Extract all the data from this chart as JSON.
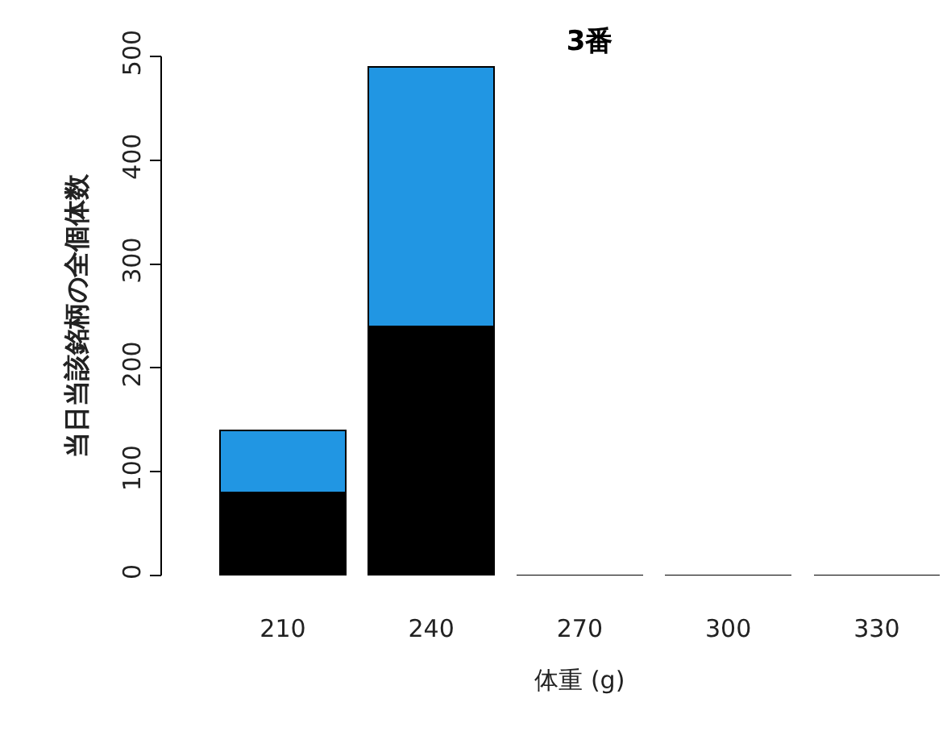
{
  "chart_data": {
    "type": "bar",
    "title": "3番",
    "xlabel": "体重 (g)",
    "ylabel": "当日当該銘柄の全個体数",
    "categories": [
      "210",
      "240",
      "270",
      "300",
      "330"
    ],
    "stacked": true,
    "series": [
      {
        "color": "#000000",
        "values": [
          80,
          240,
          0,
          0,
          0
        ]
      },
      {
        "color": "#2196e3",
        "values": [
          60,
          250,
          0,
          0,
          0
        ]
      }
    ],
    "ylim": [
      0,
      500
    ],
    "yticks": [
      0,
      100,
      200,
      300,
      400,
      500
    ],
    "grid": false
  }
}
